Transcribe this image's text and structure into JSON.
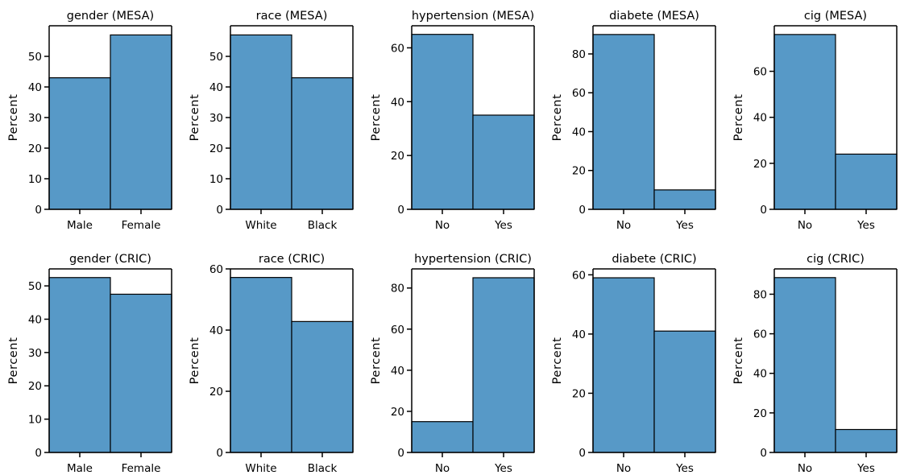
{
  "style": {
    "bar_fill": "#5799c7",
    "bar_edge": "#000000",
    "axis_color": "#000000"
  },
  "chart_data": [
    {
      "type": "bar",
      "title": "gender (MESA)",
      "categories": [
        "Male",
        "Female"
      ],
      "values": [
        43,
        57
      ],
      "ylabel": "Percent",
      "ylim": [
        0,
        60
      ],
      "yticks": [
        0,
        10,
        20,
        30,
        40,
        50
      ],
      "grid": false
    },
    {
      "type": "bar",
      "title": "race (MESA)",
      "categories": [
        "White",
        "Black"
      ],
      "values": [
        57,
        43
      ],
      "ylabel": "Percent",
      "ylim": [
        0,
        60
      ],
      "yticks": [
        0,
        10,
        20,
        30,
        40,
        50
      ],
      "grid": false
    },
    {
      "type": "bar",
      "title": "hypertension (MESA)",
      "categories": [
        "No",
        "Yes"
      ],
      "values": [
        65,
        35
      ],
      "ylabel": "Percent",
      "ylim": [
        0,
        68.2
      ],
      "yticks": [
        0,
        20,
        40,
        60
      ],
      "grid": false
    },
    {
      "type": "bar",
      "title": "diabete (MESA)",
      "categories": [
        "No",
        "Yes"
      ],
      "values": [
        90,
        10
      ],
      "ylabel": "Percent",
      "ylim": [
        0,
        94.5
      ],
      "yticks": [
        0,
        20,
        40,
        60,
        80
      ],
      "grid": false
    },
    {
      "type": "bar",
      "title": "cig (MESA)",
      "categories": [
        "No",
        "Yes"
      ],
      "values": [
        76,
        24
      ],
      "ylabel": "Percent",
      "ylim": [
        0,
        79.8
      ],
      "yticks": [
        0,
        20,
        40,
        60
      ],
      "grid": false
    },
    {
      "type": "bar",
      "title": "gender (CRIC)",
      "categories": [
        "Male",
        "Female"
      ],
      "values": [
        52.5,
        47.5
      ],
      "ylabel": "Percent",
      "ylim": [
        0,
        55.1
      ],
      "yticks": [
        0,
        10,
        20,
        30,
        40,
        50
      ],
      "grid": false
    },
    {
      "type": "bar",
      "title": "race (CRIC)",
      "categories": [
        "White",
        "Black"
      ],
      "values": [
        57.2,
        42.8
      ],
      "ylabel": "Percent",
      "ylim": [
        0,
        60
      ],
      "yticks": [
        0,
        20,
        40,
        60
      ],
      "grid": false
    },
    {
      "type": "bar",
      "title": "hypertension (CRIC)",
      "categories": [
        "No",
        "Yes"
      ],
      "values": [
        15,
        85
      ],
      "ylabel": "Percent",
      "ylim": [
        0,
        89.3
      ],
      "yticks": [
        0,
        20,
        40,
        60,
        80
      ],
      "grid": false
    },
    {
      "type": "bar",
      "title": "diabete (CRIC)",
      "categories": [
        "No",
        "Yes"
      ],
      "values": [
        59,
        41
      ],
      "ylabel": "Percent",
      "ylim": [
        0,
        62
      ],
      "yticks": [
        0,
        20,
        40,
        60
      ],
      "grid": false
    },
    {
      "type": "bar",
      "title": "cig (CRIC)",
      "categories": [
        "No",
        "Yes"
      ],
      "values": [
        88.4,
        11.6
      ],
      "ylabel": "Percent",
      "ylim": [
        0,
        92.8
      ],
      "yticks": [
        0,
        20,
        40,
        60,
        80
      ],
      "grid": false
    }
  ]
}
